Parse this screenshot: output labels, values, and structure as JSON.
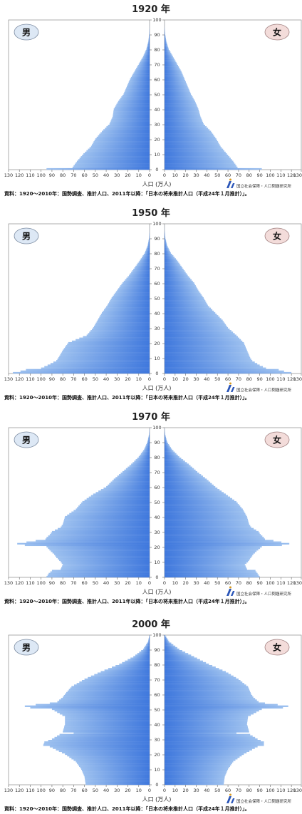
{
  "common": {
    "male_label": "男",
    "female_label": "女",
    "xlabel": "人口 (万人)",
    "source": "資料：1920～2010年：国勢調査、推計人口、2011年以降：「日本の将来推計人口（平成24年１月推計）」。",
    "institute": "国立社会保障・人口問題研究所",
    "x_ticks": [
      "130",
      "120",
      "110",
      "100",
      "90",
      "80",
      "70",
      "60",
      "50",
      "40",
      "30",
      "20",
      "10",
      "0"
    ],
    "x_ticks_female": [
      "0",
      "10",
      "20",
      "30",
      "40",
      "50",
      "60",
      "70",
      "80",
      "90",
      "100",
      "110",
      "120",
      "130"
    ],
    "y_ticks": [
      "0",
      "10",
      "20",
      "30",
      "40",
      "50",
      "60",
      "70",
      "80",
      "90",
      "100"
    ],
    "colors": {
      "bar_light": "#9cc0ef",
      "bar_dark": "#3f78dd",
      "male_badge": "#dde8f5",
      "female_badge": "#f3dcda"
    }
  },
  "chart_data": [
    {
      "type": "bar",
      "title": "1920 年",
      "ylim": [
        0,
        100
      ],
      "xlim": [
        0,
        130
      ],
      "age_points": [
        0,
        1,
        5,
        10,
        15,
        20,
        25,
        30,
        35,
        40,
        45,
        50,
        55,
        60,
        65,
        70,
        75,
        80,
        85,
        90,
        95,
        100
      ],
      "male_points": [
        95,
        71,
        67,
        61,
        54,
        50,
        44,
        37,
        34,
        33,
        29,
        24,
        21,
        18,
        14,
        10,
        6,
        3,
        1.2,
        0.4,
        0.1,
        0
      ],
      "female_points": [
        92,
        69,
        65,
        59,
        53,
        49,
        44,
        37,
        34,
        32,
        29,
        25,
        22,
        19,
        16,
        12,
        8,
        4,
        1.8,
        0.6,
        0.1,
        0
      ]
    },
    {
      "type": "bar",
      "title": "1950 年",
      "ylim": [
        0,
        100
      ],
      "xlim": [
        0,
        130
      ],
      "age_points": [
        0,
        1,
        2,
        3,
        4,
        5,
        8,
        10,
        15,
        20,
        25,
        30,
        35,
        40,
        45,
        50,
        55,
        60,
        65,
        70,
        75,
        80,
        85,
        90,
        95,
        100
      ],
      "male_points": [
        126,
        119,
        114,
        100,
        97,
        94,
        86,
        84,
        80,
        75,
        58,
        52,
        48,
        44,
        39,
        35,
        30,
        25,
        19,
        14,
        9,
        4.5,
        1.8,
        0.5,
        0.1,
        0
      ],
      "female_points": [
        120,
        113,
        108,
        96,
        93,
        90,
        83,
        81,
        78,
        75,
        68,
        60,
        55,
        48,
        41,
        37,
        32,
        28,
        22,
        17,
        12,
        6,
        2.5,
        0.8,
        0.2,
        0
      ]
    },
    {
      "type": "bar",
      "title": "1970 年",
      "ylim": [
        0,
        100
      ],
      "xlim": [
        0,
        130
      ],
      "age_points": [
        0,
        2,
        4,
        5,
        8,
        10,
        13,
        15,
        17,
        20,
        21,
        22,
        24,
        25,
        26,
        28,
        30,
        33,
        35,
        40,
        45,
        50,
        55,
        60,
        65,
        70,
        75,
        80,
        85,
        90,
        95,
        100
      ],
      "male_points": [
        95,
        93,
        90,
        82,
        80,
        82,
        86,
        88,
        91,
        95,
        115,
        122,
        105,
        96,
        95,
        92,
        90,
        82,
        80,
        78,
        68,
        62,
        52,
        40,
        33,
        25,
        17,
        10,
        5,
        2,
        0.5,
        0
      ],
      "female_points": [
        90,
        88,
        86,
        78,
        76,
        79,
        82,
        84,
        87,
        92,
        111,
        118,
        103,
        95,
        94,
        91,
        89,
        82,
        80,
        78,
        74,
        68,
        58,
        48,
        40,
        31,
        23,
        14,
        7,
        2.5,
        0.6,
        0
      ]
    },
    {
      "type": "bar",
      "title": "2000 年",
      "ylim": [
        0,
        100
      ],
      "xlim": [
        0,
        130
      ],
      "age_points": [
        0,
        5,
        10,
        15,
        20,
        25,
        26,
        28,
        30,
        33,
        34,
        35,
        40,
        45,
        50,
        51,
        52,
        53,
        54,
        55,
        58,
        60,
        65,
        70,
        75,
        80,
        85,
        90,
        95,
        100
      ],
      "male_points": [
        59,
        60,
        63,
        68,
        78,
        92,
        98,
        97,
        90,
        83,
        70,
        80,
        78,
        78,
        90,
        110,
        115,
        105,
        92,
        85,
        80,
        78,
        72,
        60,
        45,
        28,
        15,
        6,
        1.5,
        0
      ],
      "female_points": [
        56,
        57,
        60,
        65,
        75,
        88,
        94,
        94,
        88,
        81,
        68,
        80,
        78,
        79,
        92,
        112,
        117,
        107,
        95,
        89,
        84,
        82,
        79,
        70,
        58,
        42,
        28,
        14,
        4.5,
        0
      ]
    }
  ]
}
